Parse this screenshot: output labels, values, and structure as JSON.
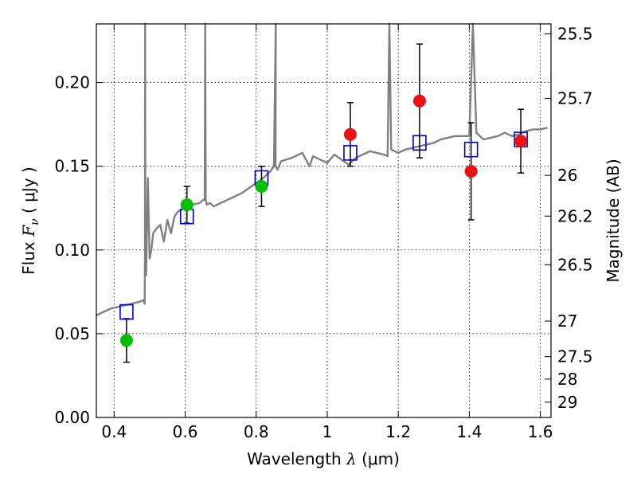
{
  "chart_data": {
    "type": "scatter",
    "xlabel": {
      "prefix": "Wavelength  ",
      "symbol": "λ",
      "unit": " (μm)"
    },
    "ylabel": {
      "prefix": "Flux  ",
      "symbol": "F",
      "sub": "ν",
      "unit": "  ( μJy )"
    },
    "y2label": "Magnitude (AB)",
    "xlim": [
      0.35,
      1.63
    ],
    "ylim": [
      0.0,
      0.235
    ],
    "x_ticks": [
      0.4,
      0.6,
      0.8,
      1.0,
      1.2,
      1.4,
      1.6
    ],
    "x_tick_labels": [
      "0.4",
      "0.6",
      "0.8",
      "1",
      "1.2",
      "1.4",
      "1.6"
    ],
    "y_ticks": [
      0.0,
      0.05,
      0.1,
      0.15,
      0.2
    ],
    "y_tick_labels": [
      "0.00",
      "0.05",
      "0.10",
      "0.15",
      "0.20"
    ],
    "y2_ticks": [
      25.5,
      25.7,
      26,
      26.2,
      26.5,
      27,
      27.5,
      28,
      29
    ],
    "y2_tick_labels": [
      "25.5",
      "25.7",
      "26",
      "26.2",
      "26.5",
      "27",
      "27.5",
      "28",
      "29"
    ],
    "grid": true,
    "colors": {
      "model": "#808080",
      "green": "#00c000",
      "red": "#ee1111",
      "square": "#0000cc",
      "errorbar": "#000000"
    },
    "series": [
      {
        "type": "line",
        "x": [
          0.35,
          0.37,
          0.39,
          0.41,
          0.43,
          0.45,
          0.47,
          0.482,
          0.486,
          0.487,
          0.4875,
          0.488,
          0.49,
          0.495,
          0.5,
          0.505,
          0.51,
          0.52,
          0.53,
          0.54,
          0.55,
          0.56,
          0.57,
          0.58,
          0.6,
          0.62,
          0.64,
          0.652,
          0.655,
          0.6565,
          0.658,
          0.661,
          0.67,
          0.68,
          0.7,
          0.72,
          0.74,
          0.76,
          0.78,
          0.8,
          0.82,
          0.84,
          0.85,
          0.855,
          0.8545,
          0.86,
          0.87,
          0.9,
          0.93,
          0.95,
          0.96,
          0.98,
          1.0,
          1.02,
          1.04,
          1.06,
          1.08,
          1.1,
          1.12,
          1.14,
          1.16,
          1.17,
          1.175,
          1.18,
          1.19,
          1.2,
          1.22,
          1.24,
          1.26,
          1.28,
          1.3,
          1.32,
          1.34,
          1.36,
          1.38,
          1.4,
          1.41,
          1.42,
          1.44,
          1.46,
          1.48,
          1.5,
          1.52,
          1.54,
          1.56,
          1.58,
          1.6,
          1.62
        ],
        "y": [
          0.061,
          0.063,
          0.065,
          0.066,
          0.067,
          0.068,
          0.069,
          0.07,
          0.068,
          0.1,
          0.24,
          0.09,
          0.085,
          0.143,
          0.095,
          0.1,
          0.11,
          0.113,
          0.115,
          0.105,
          0.118,
          0.11,
          0.12,
          0.123,
          0.125,
          0.127,
          0.128,
          0.13,
          0.13,
          0.24,
          0.13,
          0.127,
          0.128,
          0.126,
          0.128,
          0.13,
          0.132,
          0.134,
          0.137,
          0.14,
          0.143,
          0.147,
          0.15,
          0.24,
          0.15,
          0.148,
          0.153,
          0.155,
          0.158,
          0.15,
          0.156,
          0.154,
          0.152,
          0.157,
          0.154,
          0.151,
          0.155,
          0.157,
          0.159,
          0.158,
          0.157,
          0.156,
          0.24,
          0.16,
          0.159,
          0.158,
          0.16,
          0.161,
          0.162,
          0.163,
          0.164,
          0.166,
          0.167,
          0.168,
          0.168,
          0.168,
          0.24,
          0.17,
          0.166,
          0.167,
          0.168,
          0.17,
          0.168,
          0.169,
          0.171,
          0.172,
          0.172,
          0.173
        ]
      },
      {
        "type": "markers",
        "marker": "open-square",
        "color": "#0000cc",
        "x": [
          0.435,
          0.605,
          0.815,
          1.065,
          1.26,
          1.405,
          1.545
        ],
        "y": [
          0.063,
          0.12,
          0.143,
          0.158,
          0.164,
          0.16,
          0.166
        ]
      },
      {
        "type": "markers",
        "marker": "filled-circle",
        "color": "#00c000",
        "x": [
          0.435,
          0.605,
          0.815
        ],
        "y": [
          0.046,
          0.127,
          0.138
        ],
        "yerr": [
          0.013,
          0.011,
          0.012
        ]
      },
      {
        "type": "markers",
        "marker": "filled-circle",
        "color": "#ee1111",
        "x": [
          1.065,
          1.26,
          1.405,
          1.545
        ],
        "y": [
          0.169,
          0.189,
          0.147,
          0.165
        ],
        "yerr": [
          0.019,
          0.034,
          0.029,
          0.019
        ]
      }
    ]
  }
}
